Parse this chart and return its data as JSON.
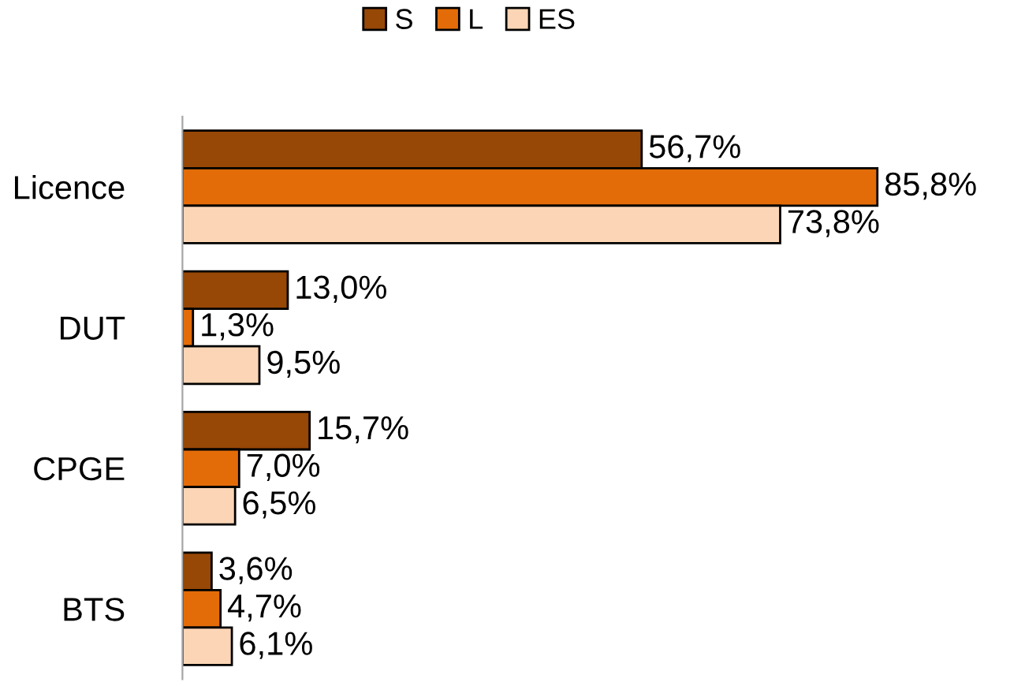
{
  "chart_data": {
    "type": "bar",
    "orientation": "horizontal",
    "categories": [
      "Licence",
      "DUT",
      "CPGE",
      "BTS"
    ],
    "series": [
      {
        "name": "S",
        "color": "#974706",
        "values": [
          56.7,
          13.0,
          15.7,
          3.6
        ],
        "value_labels": [
          "56,7%",
          "13,0%",
          "15,7%",
          "3,6%"
        ]
      },
      {
        "name": "L",
        "color": "#e36c09",
        "values": [
          85.8,
          1.3,
          7.0,
          4.7
        ],
        "value_labels": [
          "85,8%",
          "1,3%",
          "7,0%",
          "4,7%"
        ]
      },
      {
        "name": "ES",
        "color": "#fbd5b5",
        "values": [
          73.8,
          9.5,
          6.5,
          6.1
        ],
        "value_labels": [
          "73,8%",
          "9,5%",
          "6,5%",
          "6,1%"
        ]
      }
    ],
    "legend": "top",
    "grid": false
  }
}
